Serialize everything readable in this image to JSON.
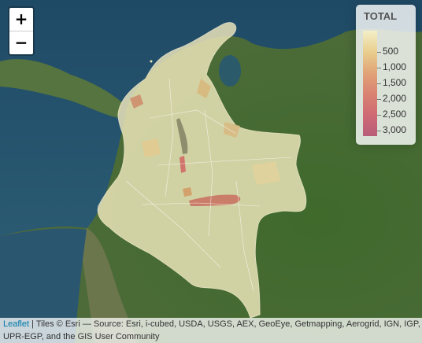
{
  "map": {
    "zoom_in_label": "+",
    "zoom_out_label": "−"
  },
  "legend": {
    "title": "TOTAL",
    "tick_labels": [
      "500",
      "1,000",
      "1,500",
      "2,000",
      "2,500",
      "3,000"
    ],
    "colors": [
      "#f3efc8",
      "#e9cf8f",
      "#e1a377",
      "#d98372",
      "#cf6a74",
      "#b85e78"
    ]
  },
  "attribution": {
    "link_text": "Leaflet",
    "separator": " | ",
    "line1_rest": "Tiles © Esri — Source: Esri, i-cubed, USDA, USGS, AEX, GeoEye, Getmapping, Aerogrid, IGN, IGP,",
    "line2": "UPR-EGP, and the GIS User Community"
  },
  "colors": {
    "land_green": "#4c6b37",
    "ocean": "#2d4f67",
    "choropleth_light": "#f0e9bd",
    "choropleth_mid": "#d8b577",
    "choropleth_dark": "#c96f5e"
  }
}
